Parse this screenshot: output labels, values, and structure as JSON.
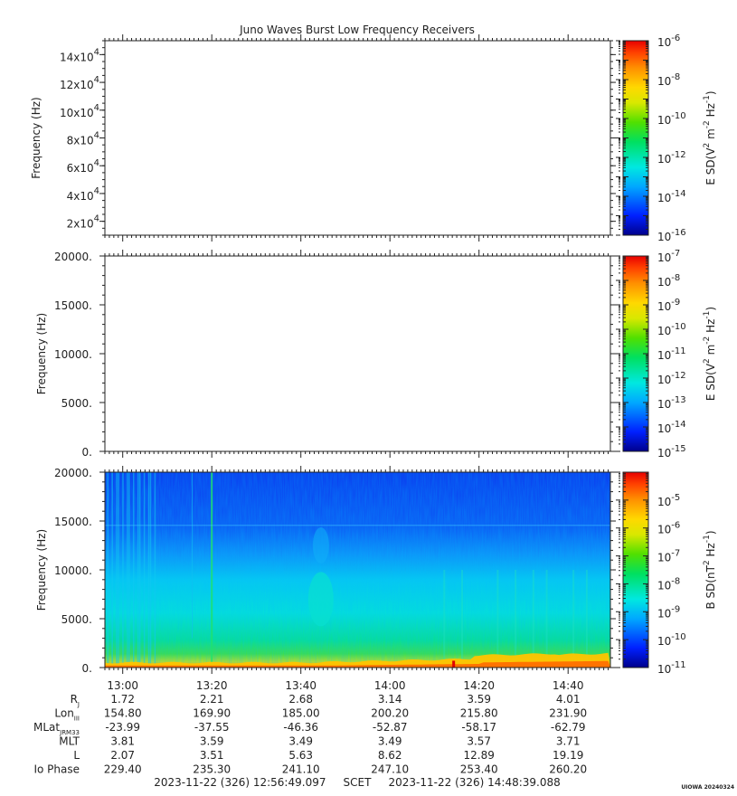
{
  "chart_data": [
    {
      "type": "heatmap",
      "title": "Juno Waves Burst Low Frequency Receivers",
      "ylabel": "Frequency (Hz)",
      "ylim": [
        10000,
        150000
      ],
      "yticks": [
        {
          "value": 20000,
          "mant": "2x10",
          "exp": "4"
        },
        {
          "value": 40000,
          "mant": "4x10",
          "exp": "4"
        },
        {
          "value": 60000,
          "mant": "6x10",
          "exp": "4"
        },
        {
          "value": 80000,
          "mant": "8x10",
          "exp": "4"
        },
        {
          "value": 100000,
          "mant": "10x10",
          "exp": "4"
        },
        {
          "value": 120000,
          "mant": "12x10",
          "exp": "4"
        },
        {
          "value": 140000,
          "mant": "14x10",
          "exp": "4"
        }
      ],
      "colorbar": {
        "label": "E SD(V² m⁻² Hz⁻¹)",
        "label_base": "E SD(V",
        "label_parts": [
          "2",
          " m",
          "-2",
          " Hz",
          "-1",
          ")"
        ],
        "exp_range": [
          -16,
          -6
        ],
        "ticks": [
          "-6",
          "-8",
          "-10",
          "-12",
          "-14",
          "-16"
        ]
      },
      "empty": true
    },
    {
      "type": "heatmap",
      "ylabel": "Frequency (Hz)",
      "ylim": [
        0,
        20000
      ],
      "yticks": [
        "0.",
        "5000.",
        "10000.",
        "15000.",
        "20000."
      ],
      "ytick_values": [
        0,
        5000,
        10000,
        15000,
        20000
      ],
      "colorbar": {
        "label_base": "E SD(V",
        "label_parts": [
          "2",
          " m",
          "-2",
          " Hz",
          "-1",
          ")"
        ],
        "exp_range": [
          -15,
          -7
        ],
        "ticks": [
          "-7",
          "-8",
          "-9",
          "-10",
          "-11",
          "-12",
          "-13",
          "-14",
          "-15"
        ]
      },
      "empty": true
    },
    {
      "type": "heatmap",
      "ylabel": "Frequency (Hz)",
      "ylim": [
        0,
        20000
      ],
      "yticks": [
        "0.",
        "5000.",
        "10000.",
        "15000.",
        "20000."
      ],
      "ytick_values": [
        0,
        5000,
        10000,
        15000,
        20000
      ],
      "colorbar": {
        "label_base": "B SD(nT",
        "label_parts": [
          "2",
          " Hz",
          "-1",
          ")"
        ],
        "exp_range": [
          -11,
          -4
        ],
        "ticks": [
          "-5",
          "-6",
          "-7",
          "-8",
          "-9",
          "-10",
          "-11"
        ]
      },
      "description_of_data": "broadband B spectral density; strongest (red/orange) below ~1000 Hz increasing toward later times; green/cyan background up to ~9000 Hz; blue above",
      "features": [
        {
          "t_min": 0,
          "t_max": 8,
          "f_max": 20000,
          "level": "cyan"
        },
        {
          "t_min": 44,
          "t_max": 47,
          "f_max": 12000,
          "level": "cyan"
        },
        {
          "t_min": 33,
          "t_max": 35,
          "f_max": 20000,
          "level": "green"
        }
      ],
      "x_range_minutes": [
        -4,
        109.5
      ]
    }
  ],
  "x_axis": {
    "ticks": [
      "13:00",
      "13:20",
      "13:40",
      "14:00",
      "14:20",
      "14:40"
    ],
    "tick_minutes": [
      0,
      20,
      40,
      60,
      80,
      100
    ]
  },
  "ephemeris": {
    "rows": [
      {
        "label": "R",
        "sub": "J",
        "values": [
          "1.72",
          "2.21",
          "2.68",
          "3.14",
          "3.59",
          "4.01"
        ]
      },
      {
        "label": "Lon",
        "sub": "III",
        "values": [
          "154.80",
          "169.90",
          "185.00",
          "200.20",
          "215.80",
          "231.90"
        ]
      },
      {
        "label": "MLat",
        "sub": "JRM33",
        "values": [
          "-23.99",
          "-37.55",
          "-46.36",
          "-52.87",
          "-58.17",
          "-62.79"
        ]
      },
      {
        "label": "MLT",
        "sub": "",
        "values": [
          "3.81",
          "3.59",
          "3.49",
          "3.49",
          "3.57",
          "3.71"
        ]
      },
      {
        "label": "L",
        "sub": "",
        "values": [
          "2.07",
          "3.51",
          "5.63",
          "8.62",
          "12.89",
          "19.19"
        ]
      },
      {
        "label": "Io Phase",
        "sub": "",
        "values": [
          "229.40",
          "235.30",
          "241.10",
          "247.10",
          "253.40",
          "260.20"
        ]
      }
    ]
  },
  "footer": {
    "time_range": "2023-11-22 (326) 12:56:49.097     SCET     2023-11-22 (326) 14:48:39.088",
    "credit": "UIOWA 20240324"
  },
  "colors": {
    "colormap": [
      "#0000a0",
      "#0020ff",
      "#00a0ff",
      "#00e8e8",
      "#00e060",
      "#40e000",
      "#c8e000",
      "#ffe000",
      "#ffa000",
      "#ff5000",
      "#e80000"
    ]
  }
}
